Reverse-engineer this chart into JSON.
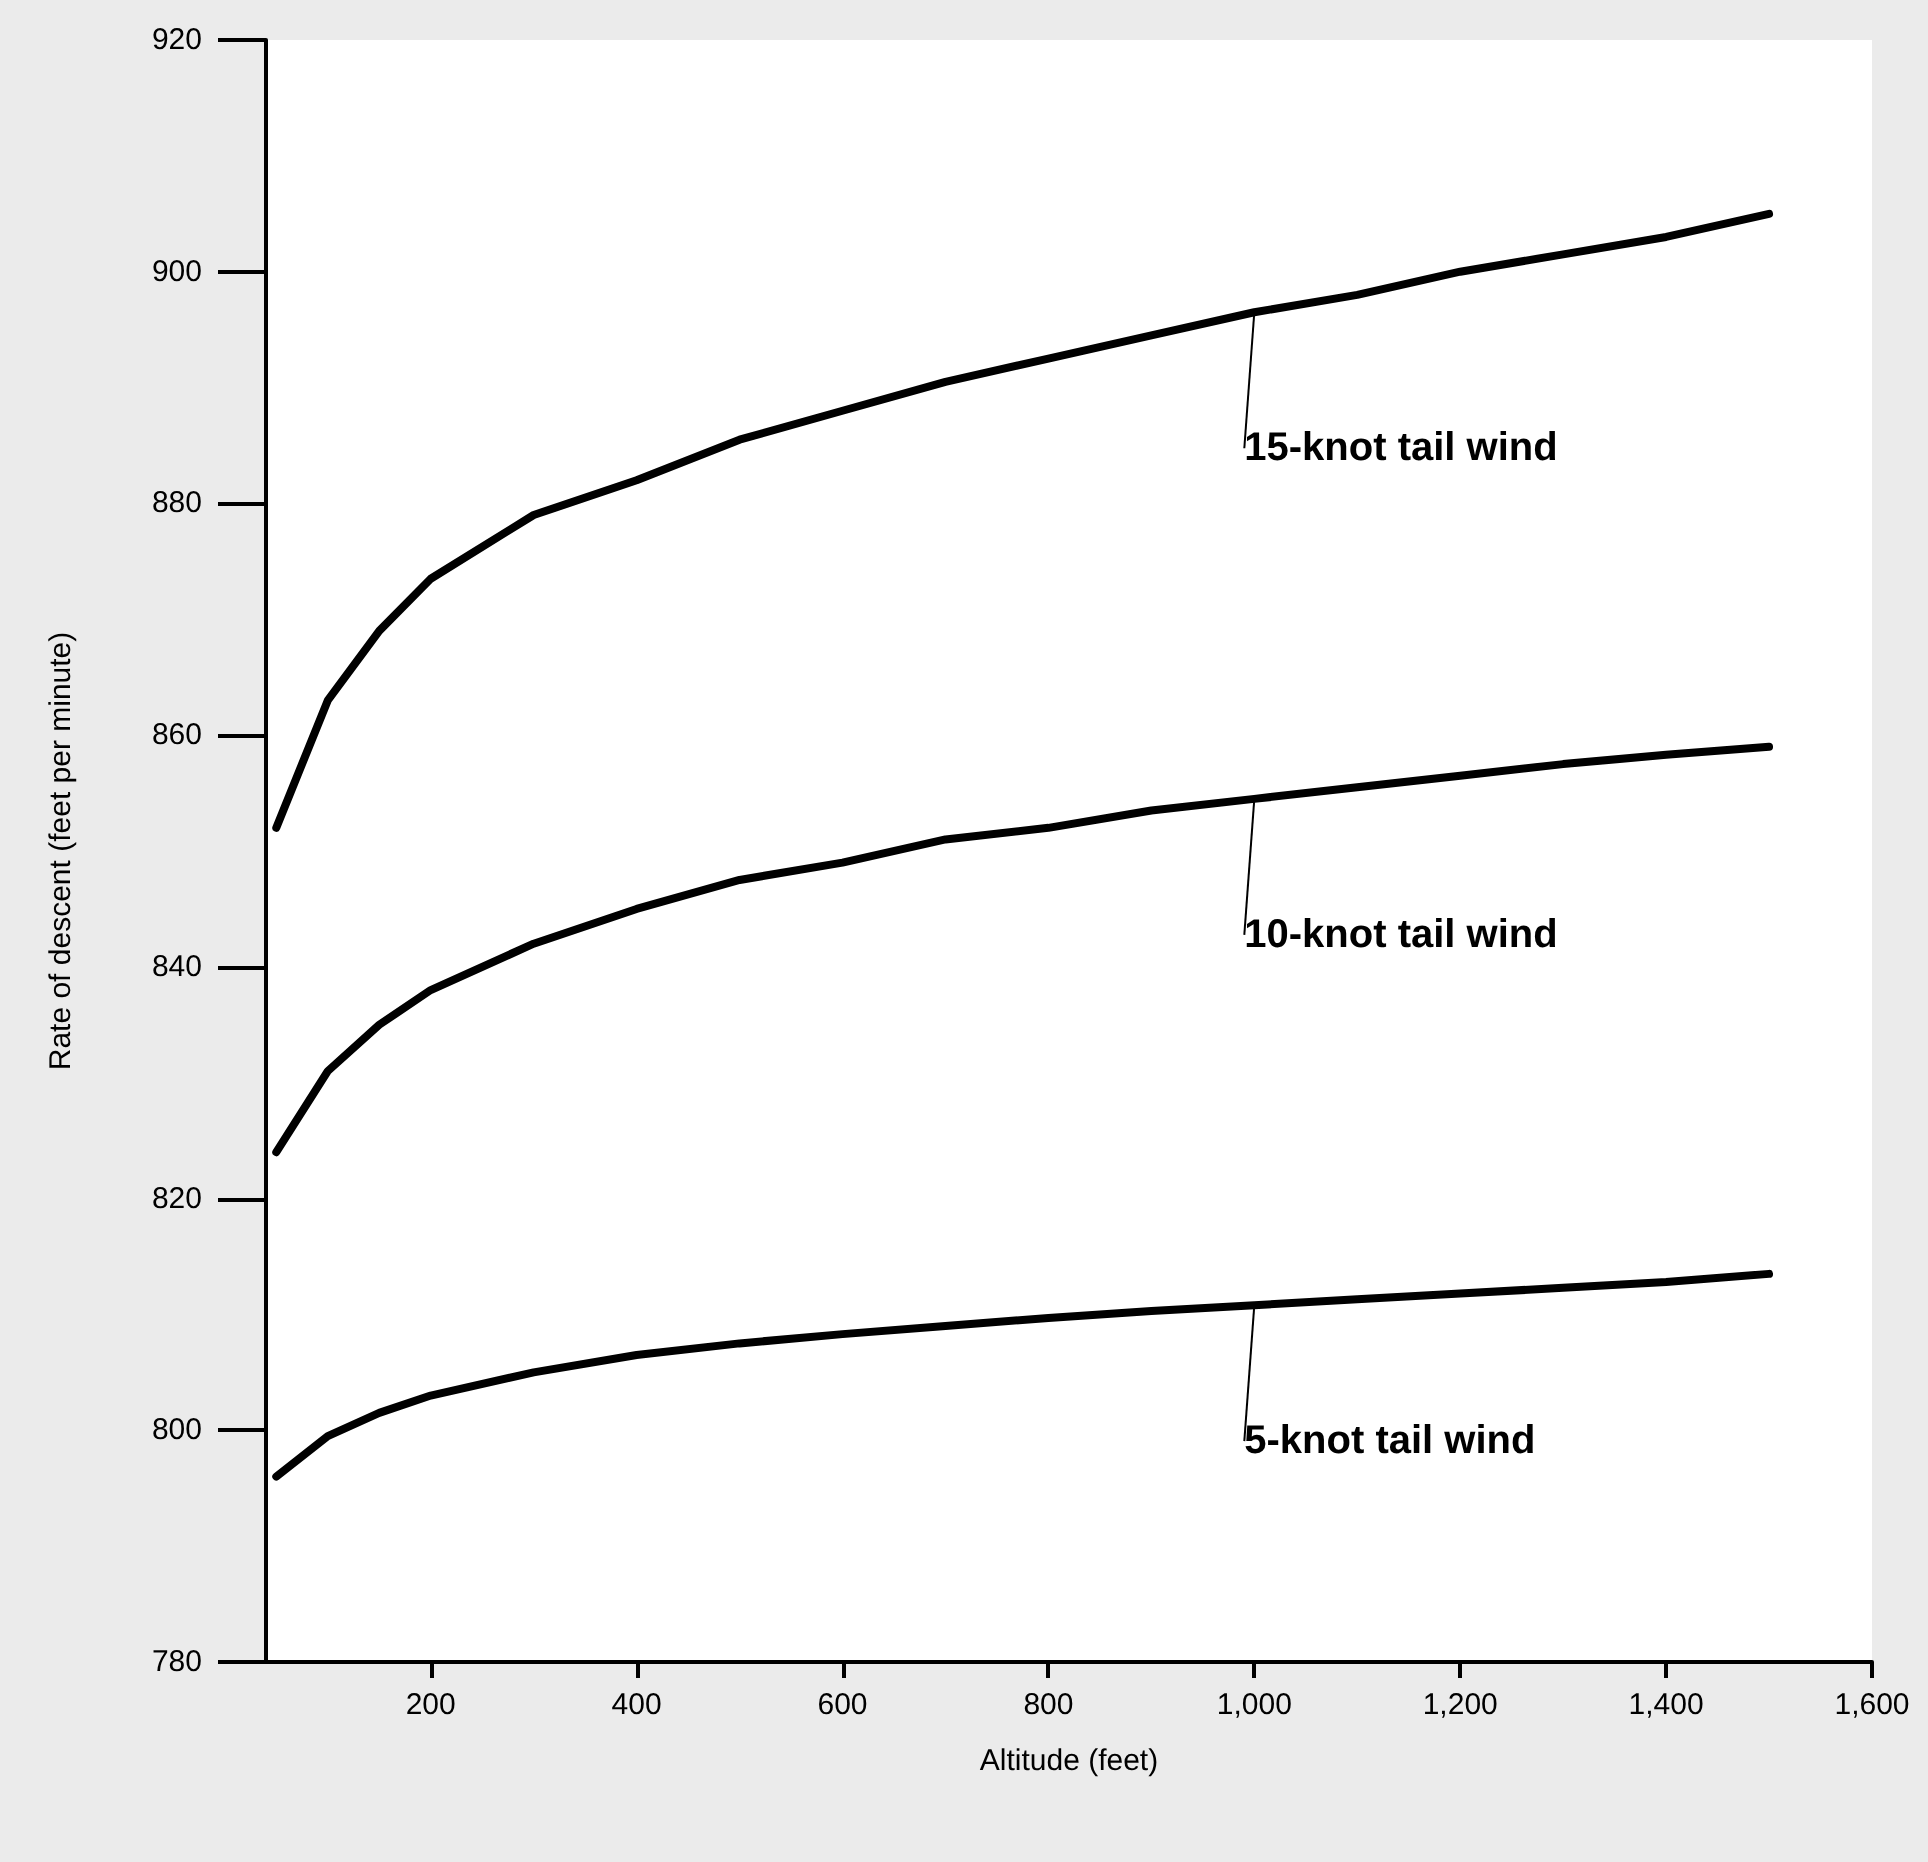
{
  "chart_data": {
    "type": "line",
    "xlabel": "Altitude (feet)",
    "ylabel": "Rate of descent (feet per minute)",
    "x": [
      50,
      100,
      150,
      200,
      300,
      400,
      500,
      600,
      700,
      800,
      900,
      1000,
      1100,
      1200,
      1300,
      1400,
      1500
    ],
    "series": [
      {
        "name": "15-knot tail wind",
        "color": "#000000",
        "values": [
          852,
          863,
          869,
          873.5,
          879,
          882,
          885.5,
          888,
          890.5,
          892.5,
          894.5,
          896.5,
          898,
          900,
          901.5,
          903,
          905
        ]
      },
      {
        "name": "10-knot tail wind",
        "color": "#000000",
        "values": [
          824,
          831,
          835,
          838,
          842,
          845,
          847.5,
          849,
          851,
          852,
          853.5,
          854.5,
          855.5,
          856.5,
          857.5,
          858.3,
          859
        ]
      },
      {
        "name": "5-knot tail wind",
        "color": "#000000",
        "values": [
          796,
          799.5,
          801.5,
          803,
          805,
          806.5,
          807.5,
          808.3,
          809,
          809.7,
          810.3,
          810.8,
          811.3,
          811.8,
          812.3,
          812.8,
          813.5
        ]
      }
    ],
    "xlim": [
      40,
      1600
    ],
    "xticks": [
      200,
      400,
      600,
      800,
      {
        "value": 1000,
        "label": "1,000"
      },
      {
        "value": 1200,
        "label": "1,200"
      },
      {
        "value": 1400,
        "label": "1,400"
      },
      {
        "value": 1600,
        "label": "1,600"
      }
    ],
    "ylim": [
      780,
      920
    ],
    "yticks": [
      780,
      800,
      820,
      840,
      860,
      880,
      900,
      920
    ],
    "grid": false,
    "legend": false,
    "marker": "none",
    "line_style": "solid"
  }
}
